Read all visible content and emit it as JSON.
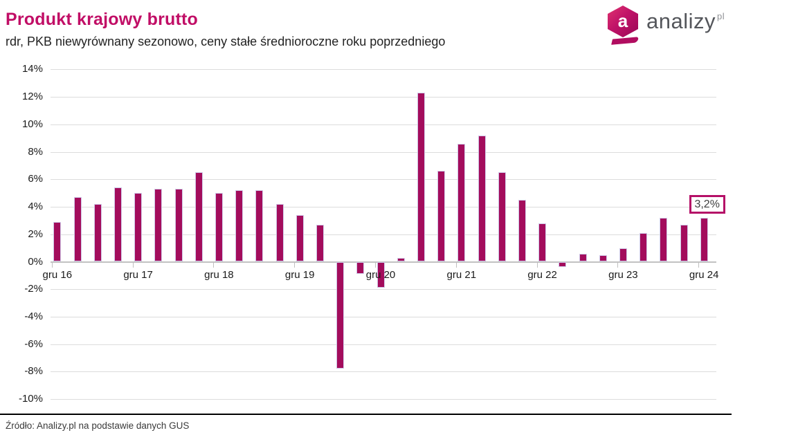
{
  "header": {
    "title": "Produkt krajowy brutto",
    "subtitle": "rdr, PKB niewyrównany sezonowo, ceny stałe średnioroczne roku poprzedniego"
  },
  "logo": {
    "icon_letter": "a",
    "name": "analizy",
    "tld": "pl"
  },
  "footer": {
    "source": "Źródło: Analizy.pl na podstawie danych GUS"
  },
  "colors": {
    "title": "#c10e66",
    "bar": "#a30c5c",
    "bar_border": "#cfc9e8",
    "grid": "#dcdcdc",
    "axis": "#c2c2c2",
    "annotation_border": "#b50f67",
    "text": "#1a1a1a",
    "logo_text": "#54565b",
    "logo_gradient_start": "#e0346f",
    "logo_gradient_end": "#9a0755"
  },
  "chart_data": {
    "type": "bar",
    "title": "Produkt krajowy brutto",
    "subtitle": "rdr, PKB niewyrównany sezonowo, ceny stałe średnioroczne roku poprzedniego",
    "unit": "%",
    "xlabel": "",
    "ylabel": "",
    "ylim": [
      -10,
      14
    ],
    "y_tick_step": 2,
    "y_tick_labels": [
      "14%",
      "12%",
      "10%",
      "8%",
      "6%",
      "4%",
      "2%",
      "0%",
      "-2%",
      "-4%",
      "-6%",
      "-8%",
      "-10%"
    ],
    "x_tick_labels": [
      "gru 16",
      "gru 17",
      "gru 18",
      "gru 19",
      "gru 20",
      "gru 21",
      "gru 22",
      "gru 23",
      "gru 24"
    ],
    "label_interval": 4,
    "values": [
      2.9,
      4.7,
      4.2,
      5.4,
      5.0,
      5.3,
      5.3,
      6.5,
      5.0,
      5.2,
      5.2,
      4.2,
      3.4,
      2.7,
      -7.8,
      -0.9,
      -1.9,
      0.3,
      12.3,
      6.6,
      8.6,
      9.2,
      6.5,
      4.5,
      2.8,
      -0.4,
      0.6,
      0.5,
      1.0,
      2.1,
      3.2,
      2.7,
      3.2
    ],
    "grid": "horizontal",
    "legend": "none",
    "annotation": {
      "text": "3,2%",
      "index": 32
    }
  }
}
